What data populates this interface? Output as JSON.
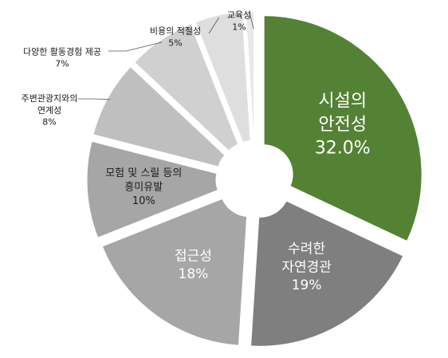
{
  "chart_data": {
    "type": "pie",
    "style": "donut-exploded",
    "start": "top",
    "direction": "clockwise",
    "slices": [
      {
        "label_lines": [
          "시설의",
          "안전성"
        ],
        "value": 32.0,
        "value_label": "32.0%",
        "color": "#548235",
        "text_color": "#ffffff",
        "label_position": "inside"
      },
      {
        "label_lines": [
          "수려한",
          "자연경관"
        ],
        "value": 19,
        "value_label": "19%",
        "color": "#7f7f7f",
        "text_color": "#ffffff",
        "label_position": "inside"
      },
      {
        "label_lines": [
          "접근성"
        ],
        "value": 18,
        "value_label": "18%",
        "color": "#a6a6a6",
        "text_color": "#ffffff",
        "label_position": "inside"
      },
      {
        "label_lines": [
          "모험 및 스릴 등의",
          "흥미유발"
        ],
        "value": 10,
        "value_label": "10%",
        "color": "#a6a6a6",
        "text_color": "#1a1a1a",
        "label_position": "inside"
      },
      {
        "label_lines": [
          "주변관광지와의",
          "연계성"
        ],
        "value": 8,
        "value_label": "8%",
        "color": "#bfbfbf",
        "text_color": "#1a1a1a",
        "label_position": "outside"
      },
      {
        "label_lines": [
          "다양한 활동경험 제공"
        ],
        "value": 7,
        "value_label": "7%",
        "color": "#d0d0d0",
        "text_color": "#1a1a1a",
        "label_position": "outside"
      },
      {
        "label_lines": [
          "비용의 적절성"
        ],
        "value": 5,
        "value_label": "5%",
        "color": "#dedede",
        "text_color": "#1a1a1a",
        "label_position": "outside"
      },
      {
        "label_lines": [
          "교육성"
        ],
        "value": 1,
        "value_label": "1%",
        "color": "#e8e8e8",
        "text_color": "#1a1a1a",
        "label_position": "outside"
      }
    ]
  }
}
